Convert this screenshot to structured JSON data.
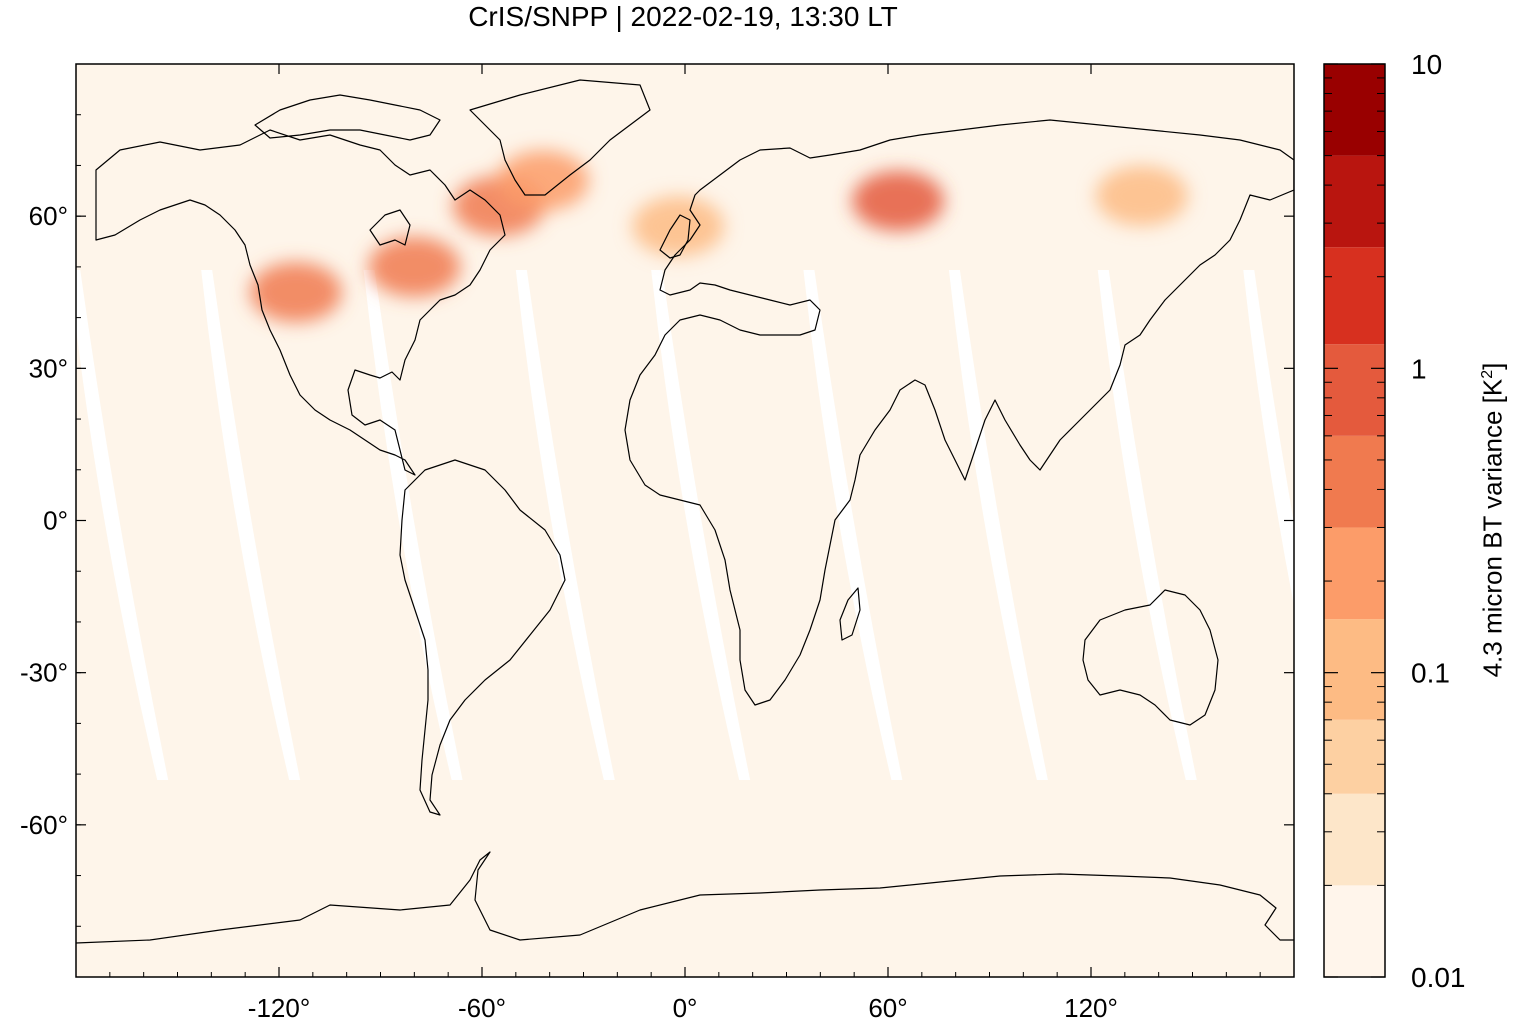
{
  "title": "CrIS/SNPP | 2022-02-19, 13:30 LT",
  "colors": {
    "ocean": "#fef5ea",
    "swath_gap": "#ffffff",
    "coast": "#000000",
    "levels": [
      "#fff5eb",
      "#fde6c9",
      "#fdd0a2",
      "#fdbb84",
      "#fc9c69",
      "#f07a4f",
      "#e45a3d",
      "#d7301f",
      "#b9150f",
      "#990000"
    ]
  },
  "map": {
    "projection": "equirectangular",
    "lon_range": [
      -180,
      180
    ],
    "lat_range": [
      -90,
      90
    ],
    "lon_ticks": [
      {
        "value": -120,
        "label": "-120°"
      },
      {
        "value": -60,
        "label": "-60°"
      },
      {
        "value": 0,
        "label": "0°"
      },
      {
        "value": 60,
        "label": "60°"
      },
      {
        "value": 120,
        "label": "120°"
      }
    ],
    "lat_ticks": [
      {
        "value": 60,
        "label": "60°"
      },
      {
        "value": 30,
        "label": "30°"
      },
      {
        "value": 0,
        "label": "0°"
      },
      {
        "value": -30,
        "label": "-30°"
      },
      {
        "value": -60,
        "label": "-60°"
      }
    ],
    "hotspots": [
      {
        "region": "western North America",
        "lon": -115,
        "lat": 45,
        "level": 5
      },
      {
        "region": "eastern Canada",
        "lon": -80,
        "lat": 50,
        "level": 5
      },
      {
        "region": "Labrador Sea",
        "lon": -55,
        "lat": 62,
        "level": 5
      },
      {
        "region": "southern Greenland",
        "lon": -42,
        "lat": 67,
        "level": 4
      },
      {
        "region": "western Siberia",
        "lon": 63,
        "lat": 63,
        "level": 6
      },
      {
        "region": "eastern Siberia",
        "lon": 135,
        "lat": 64,
        "level": 3
      },
      {
        "region": "British Isles",
        "lon": -2,
        "lat": 58,
        "level": 3
      }
    ]
  },
  "colorbar": {
    "title": "4.3 micron BT variance [K",
    "title_sup": "2",
    "title_end": "]",
    "scale": "log",
    "range": [
      0.01,
      10
    ],
    "bounds": [
      0.01,
      0.02,
      0.04,
      0.07,
      0.15,
      0.3,
      0.6,
      1.2,
      2.5,
      5,
      10
    ],
    "labels": [
      {
        "value": 10,
        "text": "10"
      },
      {
        "value": 1,
        "text": "1"
      },
      {
        "value": 0.1,
        "text": "0.1"
      },
      {
        "value": 0.01,
        "text": "0.01"
      }
    ]
  }
}
